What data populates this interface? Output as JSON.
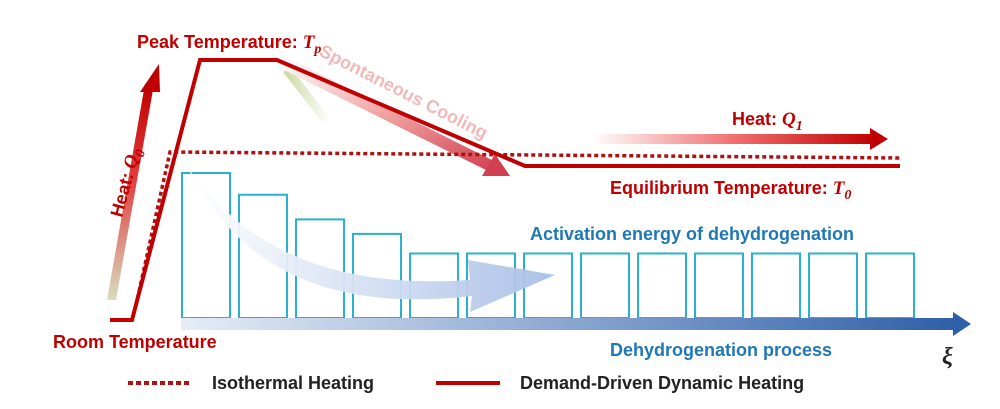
{
  "colors": {
    "red": "#c00000",
    "dark_red": "#b01010",
    "blue_label": "#1f78b4",
    "blue_arrow": "#2e5fa8",
    "cyan_bar": "#2ab0d0",
    "pink": "#e8a0a0"
  },
  "labels": {
    "peak_temperature": "Peak Temperature: ",
    "peak_symbol": "T",
    "peak_sub": "p",
    "room_temperature": "Room Temperature",
    "heat_q0": "Heat: ",
    "heat_q0_symbol": "Q",
    "heat_q0_sub": "0",
    "heat_q1": "Heat: ",
    "heat_q1_symbol": "Q",
    "heat_q1_sub": "1",
    "spontaneous_cooling": "Spontaneous Cooling",
    "equilibrium_temperature": "Equilibrium Temperature: ",
    "equilibrium_symbol": "T",
    "equilibrium_sub": "0",
    "activation_energy": "Activation energy of dehydrogenation",
    "dehydrogenation_process": "Dehydrogenation process",
    "xi": "ξ"
  },
  "legend": {
    "isothermal": "Isothermal Heating",
    "dynamic": "Demand-Driven Dynamic Heating"
  },
  "activation_bars": {
    "relative_heights": [
      1.0,
      0.85,
      0.68,
      0.58,
      0.445,
      0.445,
      0.445,
      0.445,
      0.445,
      0.445,
      0.445,
      0.445,
      0.445
    ]
  }
}
